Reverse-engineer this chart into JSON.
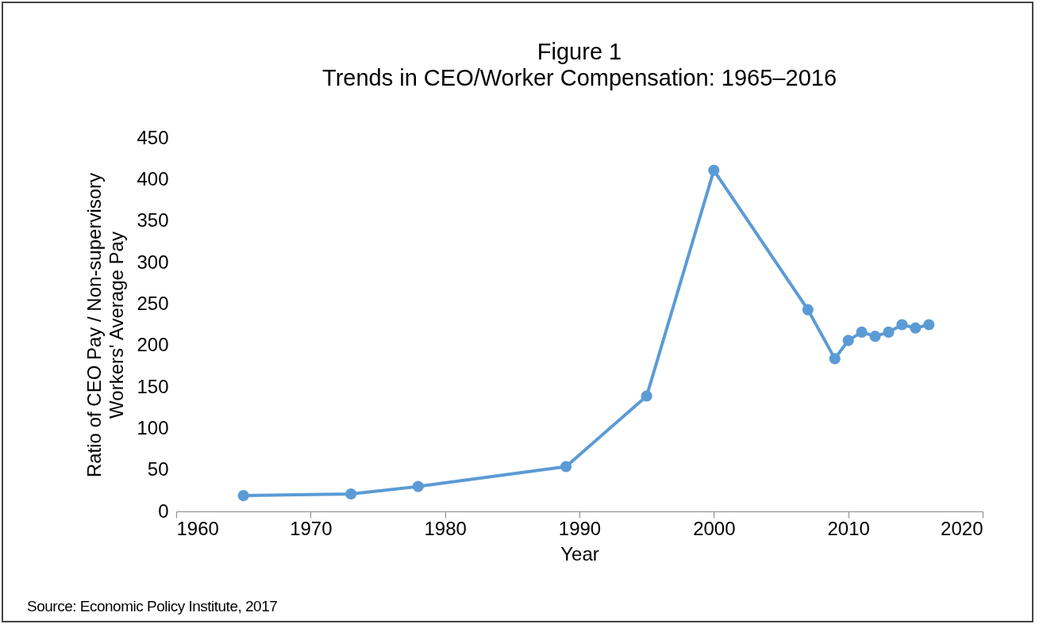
{
  "chart_data": {
    "type": "line",
    "title": "Figure 1",
    "subtitle": "Trends in CEO/Worker Compensation: 1965–2016",
    "xlabel": "Year",
    "ylabel": "Ratio of CEO Pay / Non-supervisory\nWorkers' Average Pay",
    "x": [
      1965,
      1973,
      1978,
      1989,
      1995,
      2000,
      2007,
      2009,
      2010,
      2011,
      2012,
      2013,
      2014,
      2015,
      2016
    ],
    "series": [
      {
        "color": "#5b9bd5",
        "values": [
          19,
          21,
          30,
          54,
          139,
          411,
          243,
          184,
          206,
          216,
          211,
          216,
          225,
          221,
          225
        ]
      }
    ],
    "xlim": [
      1960,
      2020
    ],
    "xticks": [
      1960,
      1970,
      1980,
      1990,
      2000,
      2010,
      2020
    ],
    "ylim": [
      0,
      450
    ],
    "yticks": [
      0,
      50,
      100,
      150,
      200,
      250,
      300,
      350,
      400,
      450
    ],
    "grid": false,
    "marker": "circle",
    "line_style": "solid",
    "annotations": [
      "Source: Economic Policy Institute, 2017"
    ]
  }
}
